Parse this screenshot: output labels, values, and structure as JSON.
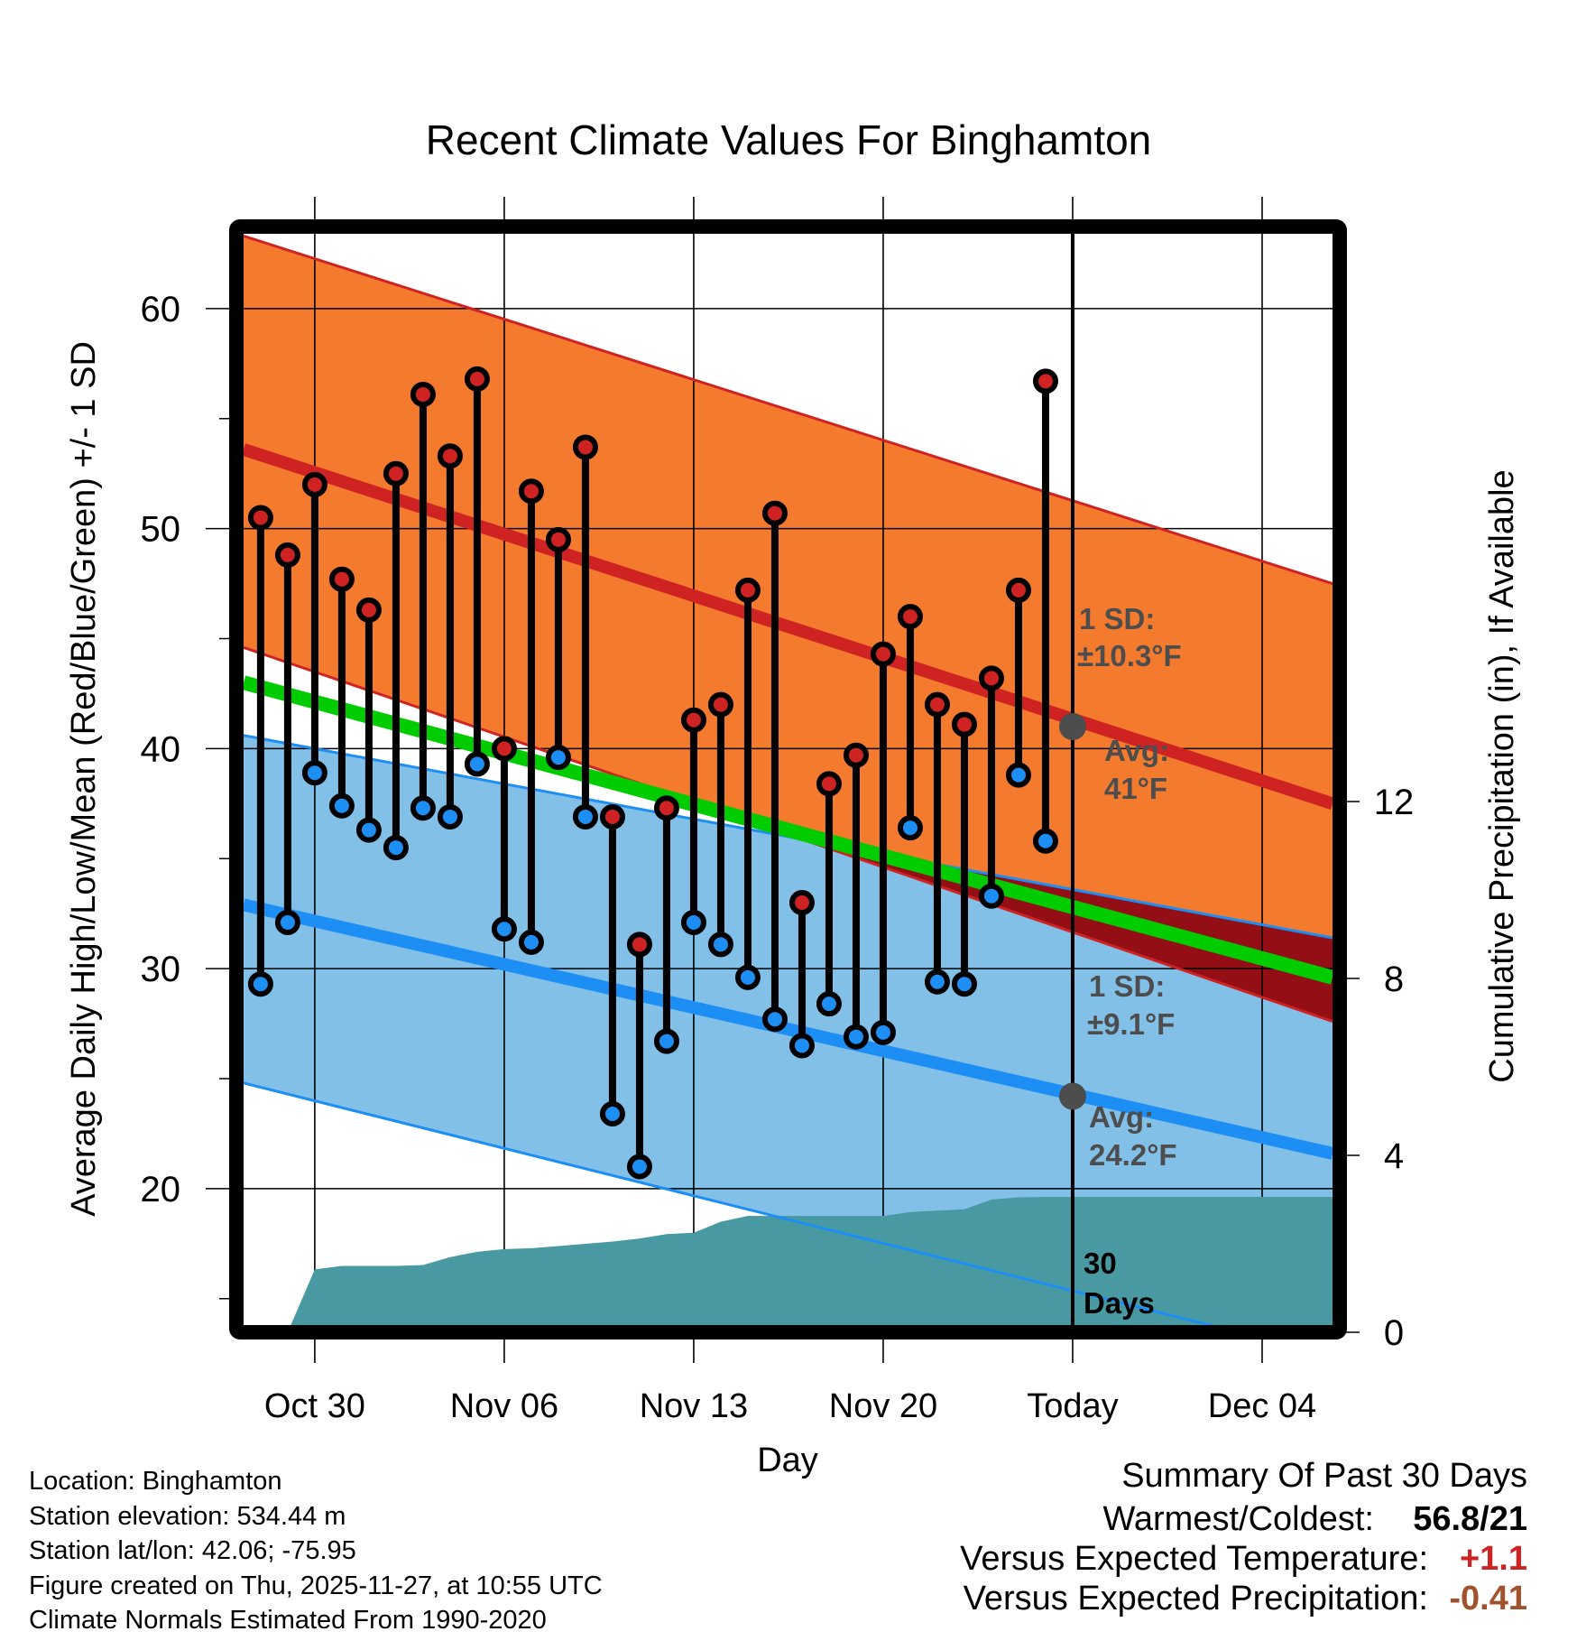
{
  "chart_data": {
    "type": "line",
    "title": "Recent Climate Values For Binghamton",
    "xlabel": "Day",
    "ylabel": "Average Daily High/Low/Mean (Red/Blue/Green) +/- 1 SD",
    "y2label": "Cumulative Precipitation (in), If Available",
    "ylim": [
      13.8,
      63.4
    ],
    "y2lim": [
      0,
      16
    ],
    "grid": true,
    "x_domain_days": [
      -2.63,
      37.6
    ],
    "x_reference_date": "Oct 30",
    "x_ticks": [
      {
        "day": 0,
        "label": "Oct 30"
      },
      {
        "day": 7,
        "label": "Nov 06"
      },
      {
        "day": 14,
        "label": "Nov 13"
      },
      {
        "day": 21,
        "label": "Nov 20"
      },
      {
        "day": 28,
        "label": "Today"
      },
      {
        "day": 35,
        "label": "Dec 04"
      }
    ],
    "y_ticks": [
      20,
      30,
      40,
      50,
      60
    ],
    "y_minor_ticks": [
      15,
      25,
      35,
      45,
      55
    ],
    "y2_ticks": [
      0,
      4,
      8,
      12
    ],
    "today_day": 28,
    "today_label": [
      "30",
      "Days"
    ],
    "daily": {
      "dates": [
        "Oct 28",
        "Oct 29",
        "Oct 30",
        "Oct 31",
        "Nov 01",
        "Nov 02",
        "Nov 03",
        "Nov 04",
        "Nov 05",
        "Nov 06",
        "Nov 07",
        "Nov 08",
        "Nov 09",
        "Nov 10",
        "Nov 11",
        "Nov 12",
        "Nov 13",
        "Nov 14",
        "Nov 15",
        "Nov 16",
        "Nov 17",
        "Nov 18",
        "Nov 19",
        "Nov 20",
        "Nov 21",
        "Nov 22",
        "Nov 23",
        "Nov 24",
        "Nov 25",
        "Nov 26"
      ],
      "day": [
        -2,
        -1,
        0,
        1,
        2,
        3,
        4,
        5,
        6,
        7,
        8,
        9,
        10,
        11,
        12,
        13,
        14,
        15,
        16,
        17,
        18,
        19,
        20,
        21,
        22,
        23,
        24,
        25,
        26,
        27
      ],
      "high": [
        50.5,
        48.8,
        52.0,
        47.7,
        46.3,
        52.5,
        56.1,
        53.3,
        56.8,
        40.0,
        51.7,
        49.5,
        53.7,
        36.9,
        31.1,
        37.3,
        41.3,
        42.0,
        47.2,
        50.7,
        33.0,
        38.4,
        39.7,
        44.3,
        46.0,
        42.0,
        41.1,
        43.2,
        47.2,
        56.7
      ],
      "low": [
        29.3,
        32.1,
        38.9,
        37.4,
        36.3,
        35.5,
        37.3,
        36.9,
        39.3,
        31.8,
        31.2,
        39.6,
        36.9,
        23.4,
        21.0,
        26.7,
        32.1,
        31.1,
        29.6,
        27.7,
        26.5,
        28.4,
        26.9,
        27.1,
        36.4,
        29.4,
        29.3,
        33.3,
        38.8,
        35.8
      ]
    },
    "normals": {
      "day": [
        -2.63,
        37.6
      ],
      "high_plus_sd": [
        63.3,
        47.5
      ],
      "high_avg": [
        53.6,
        37.5
      ],
      "high_minus_sd": [
        44.6,
        27.6
      ],
      "mean": [
        43.0,
        29.6
      ],
      "low_plus_sd": [
        40.6,
        31.4
      ],
      "low_avg": [
        32.9,
        21.6
      ],
      "low_minus_sd": [
        24.8,
        12.4
      ]
    },
    "precip": {
      "day": [
        -2.63,
        -1.0,
        0.0,
        1.0,
        2.0,
        3.0,
        4.0,
        5.0,
        6.0,
        7.0,
        8.0,
        9.0,
        10.0,
        11.0,
        12.0,
        13.0,
        14.0,
        15.0,
        16.0,
        17.0,
        18.0,
        19.0,
        20.0,
        21.0,
        22.0,
        23.0,
        24.0,
        25.0,
        26.0,
        27.0,
        37.6
      ],
      "cumulative_in": [
        0,
        0,
        1.42,
        1.5,
        1.5,
        1.5,
        1.52,
        1.7,
        1.82,
        1.88,
        1.9,
        1.95,
        2.0,
        2.05,
        2.12,
        2.22,
        2.25,
        2.5,
        2.63,
        2.63,
        2.63,
        2.63,
        2.63,
        2.63,
        2.72,
        2.75,
        2.78,
        3.0,
        3.05,
        3.06,
        3.06
      ]
    },
    "annotations": {
      "high_sd_label": [
        "1 SD:",
        "±10.3°F"
      ],
      "high_avg_label": [
        "Avg:",
        "41°F"
      ],
      "high_avg_today": 41,
      "low_sd_label": [
        "1 SD:",
        "±9.1°F"
      ],
      "low_avg_label": [
        "Avg:",
        "24.2°F"
      ],
      "low_avg_today": 24.2
    },
    "colors": {
      "high_band": "#f47a2e",
      "high_line": "#cf2222",
      "low_band": "#82c0e8",
      "low_line": "#1c8ef4",
      "overlap": "#930e15",
      "mean": "#00cc00",
      "precip": "#4899a2",
      "annot": "#4d4d4d",
      "high_dot": "#cf2222",
      "low_dot": "#1c8ef4"
    }
  },
  "info": {
    "location": "Location: Binghamton",
    "elevation": "Station elevation: 534.44 m",
    "latlon": "Station lat/lon: 42.06; -75.95",
    "created": "Figure created on Thu, 2025-11-27, at 10:55 UTC",
    "normals": "Climate Normals Estimated From 1990-2020"
  },
  "summary": {
    "heading": "Summary Of Past 30 Days",
    "warmest_coldest_label": "Warmest/Coldest:",
    "warmest_coldest_value": "56.8/21",
    "temp_label": "Versus Expected Temperature:",
    "temp_value": "+1.1",
    "temp_color": "#cf2222",
    "precip_label": "Versus Expected Precipitation:",
    "precip_value": "-0.41",
    "precip_color": "#a0522d"
  }
}
